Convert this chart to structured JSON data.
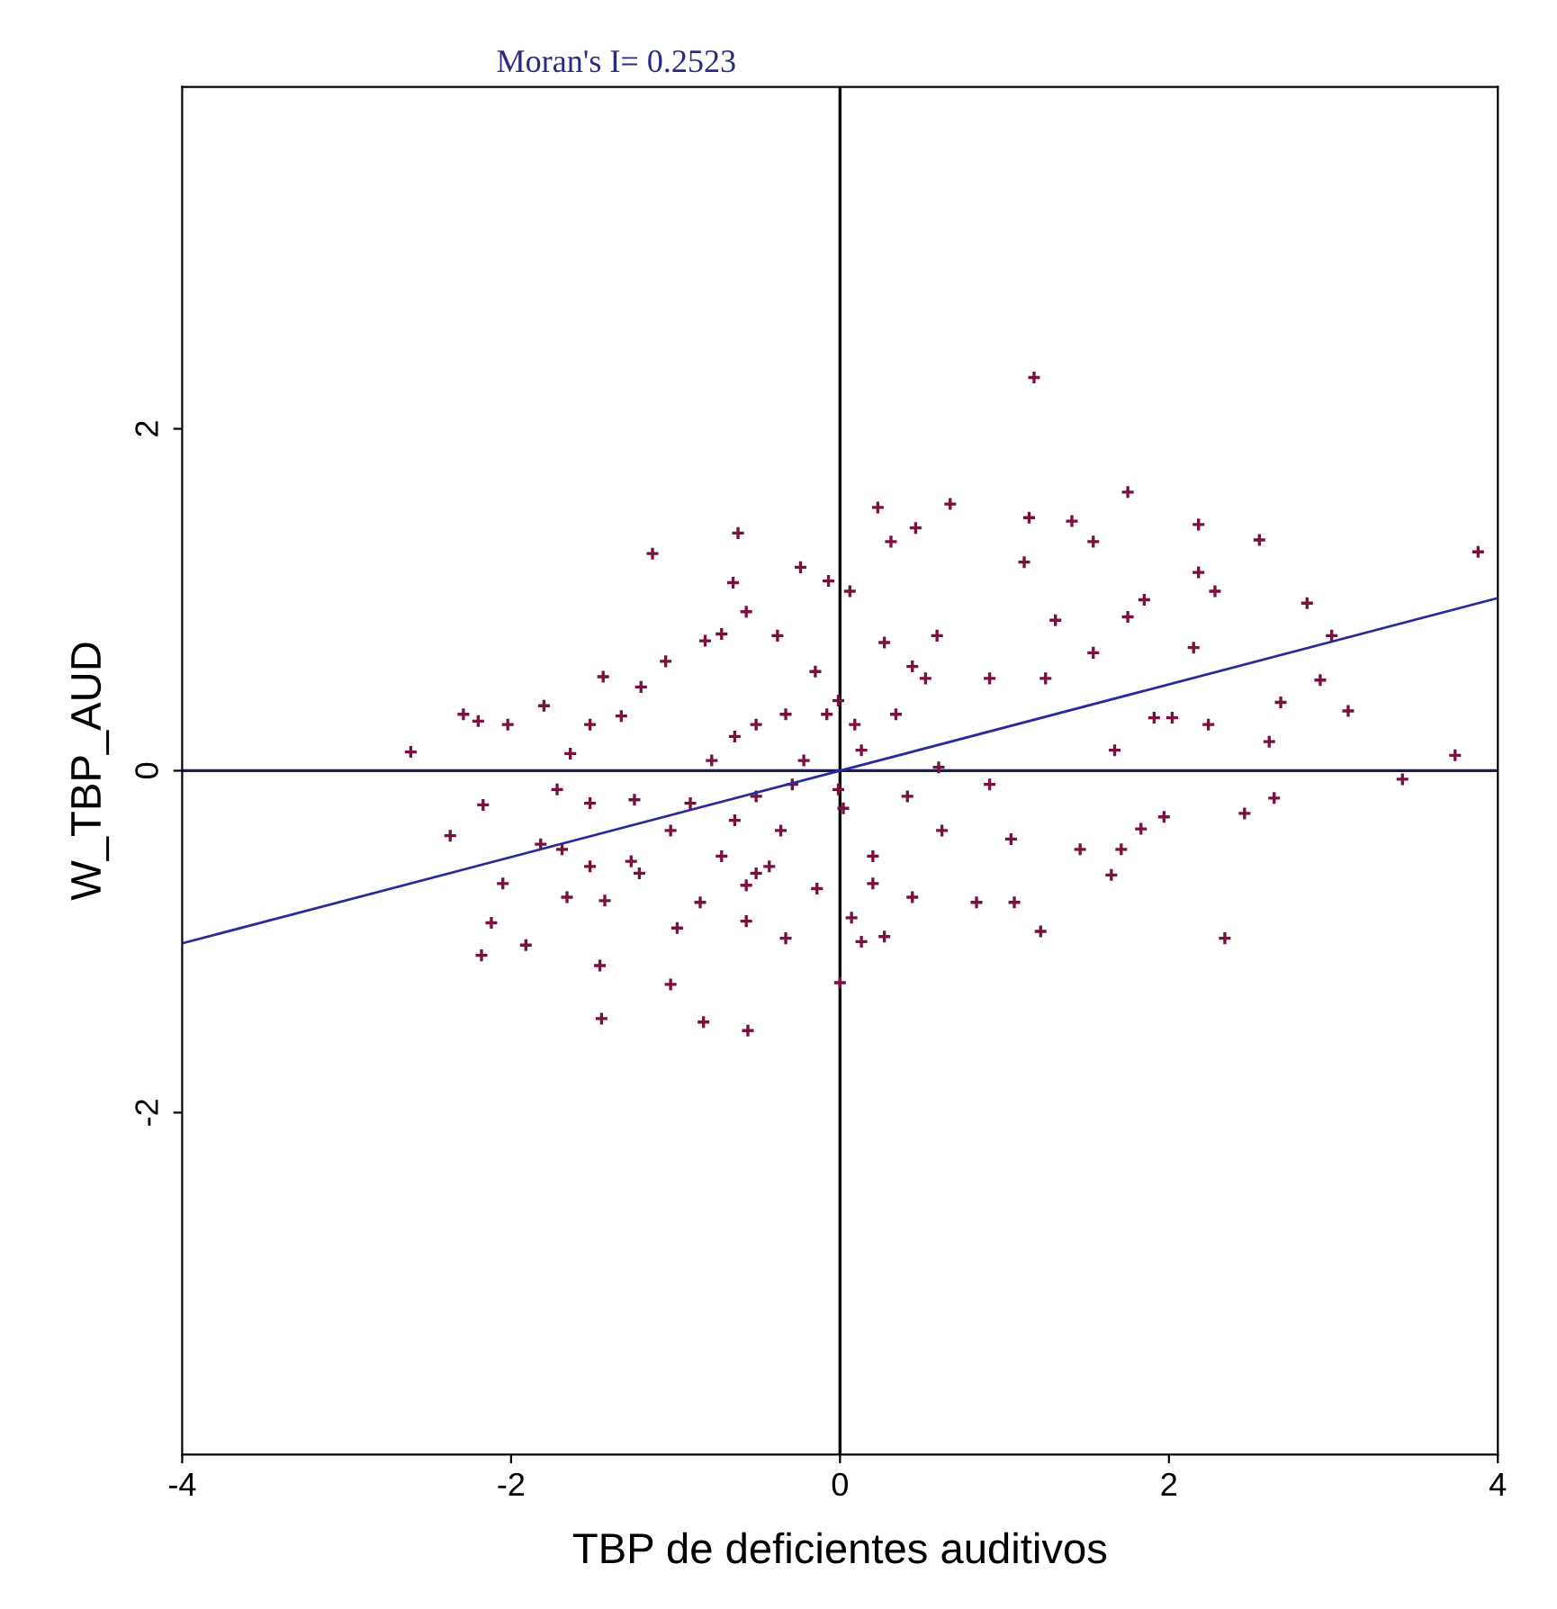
{
  "chart_data": {
    "type": "scatter",
    "title": "Moran's I= 0.2523",
    "xlabel": "TBP de deficientes auditivos",
    "ylabel": "W_TBP_AUD",
    "xlim": [
      -4,
      4
    ],
    "ylim": [
      -4,
      4
    ],
    "xticks": [
      -4,
      -2,
      0,
      2,
      4
    ],
    "yticks": [
      -2,
      0,
      2
    ],
    "grid": false,
    "legend": false,
    "ref_lines": [
      {
        "axis": "x",
        "value": 0,
        "color": "#000000"
      },
      {
        "axis": "y",
        "value": 0,
        "color": "#1a1a5e"
      }
    ],
    "series": [
      {
        "color": "#7a1040",
        "marker": "cross",
        "x": [
          1.18,
          3.88,
          3.74,
          3.42,
          2.34,
          1.75,
          2.55,
          2.18,
          2.84,
          2.92,
          3.09,
          2.68,
          2.61,
          2.64,
          2.46,
          2.24,
          2.28,
          2.18,
          2.99,
          1.65,
          1.22,
          0.13,
          1.06,
          0.23,
          0.67,
          1.15,
          1.41,
          1.54,
          1.97,
          1.83,
          1.71,
          1.46,
          1.91,
          2.02,
          2.15,
          1.85,
          1.31,
          1.12,
          0.83,
          0.44,
          0.2,
          0.6,
          0.91,
          1.04,
          0.44,
          0.31,
          1.75,
          1.54,
          1.25,
          0.91,
          0.09,
          0.0,
          1.67,
          -2.61,
          -2.29,
          -2.2,
          -2.02,
          -1.8,
          -2.17,
          -2.37,
          -2.05,
          -2.12,
          -2.18,
          -1.91,
          -1.45,
          -0.83,
          -0.56,
          -1.46,
          -1.03,
          -1.14,
          -0.62,
          -0.65,
          -0.57,
          -0.24,
          -0.07,
          0.46,
          0.06,
          -1.44,
          -1.21,
          -1.06,
          -0.82,
          -0.72,
          -0.38,
          -0.15,
          -1.33,
          -1.52,
          -1.64,
          -1.72,
          -1.52,
          -1.25,
          -1.69,
          -1.82,
          -1.52,
          -1.27,
          -1.66,
          -1.43,
          -1.22,
          -1.03,
          -0.91,
          -0.78,
          -0.64,
          -0.51,
          -0.33,
          -0.08,
          -0.01,
          -0.51,
          -0.57,
          -0.43,
          -0.72,
          -0.85,
          -0.99,
          -0.57,
          -0.33,
          -0.14,
          0.07,
          0.27,
          -0.01,
          0.02,
          -0.29,
          -0.51,
          -0.64,
          -0.36,
          -0.22,
          0.13,
          0.34,
          0.41,
          0.62,
          0.2,
          0.52,
          0.27,
          0.59
        ],
        "values": [
          2.3,
          1.28,
          0.09,
          -0.05,
          -0.98,
          1.63,
          1.35,
          1.44,
          0.98,
          0.53,
          0.35,
          0.4,
          0.17,
          -0.16,
          -0.25,
          0.27,
          1.05,
          1.16,
          0.79,
          -0.61,
          -0.94,
          -1.0,
          -0.77,
          1.54,
          1.56,
          1.48,
          1.46,
          1.34,
          -0.27,
          -0.34,
          -0.46,
          -0.46,
          0.31,
          0.31,
          0.72,
          1.0,
          0.88,
          1.22,
          -0.77,
          -0.74,
          -0.66,
          0.02,
          -0.08,
          -0.4,
          0.61,
          1.34,
          0.9,
          0.69,
          0.54,
          0.54,
          0.27,
          -1.24,
          0.12,
          0.11,
          0.33,
          0.29,
          0.27,
          0.38,
          -0.2,
          -0.38,
          -0.66,
          -0.89,
          -1.08,
          -1.02,
          -1.45,
          -1.47,
          -1.52,
          -1.14,
          -1.25,
          1.27,
          1.39,
          1.1,
          0.93,
          1.19,
          1.11,
          1.42,
          1.05,
          0.55,
          0.49,
          0.64,
          0.76,
          0.8,
          0.79,
          0.58,
          0.32,
          0.27,
          0.1,
          -0.11,
          -0.19,
          -0.17,
          -0.46,
          -0.43,
          -0.56,
          -0.53,
          -0.74,
          -0.76,
          -0.6,
          -0.35,
          -0.19,
          0.06,
          0.2,
          0.27,
          0.33,
          0.33,
          0.41,
          -0.6,
          -0.67,
          -0.56,
          -0.5,
          -0.77,
          -0.92,
          -0.88,
          -0.98,
          -0.69,
          -0.86,
          -0.97,
          -0.11,
          -0.22,
          -0.08,
          -0.15,
          -0.29,
          -0.35,
          0.06,
          0.12,
          0.33,
          -0.15,
          -0.35,
          -0.5,
          0.54,
          0.75,
          0.79
        ]
      },
      {
        "type": "line",
        "color": "#2a2a9a",
        "line_style": "solid",
        "x": [
          -4,
          4
        ],
        "values": [
          -1.01,
          1.01
        ]
      }
    ]
  }
}
